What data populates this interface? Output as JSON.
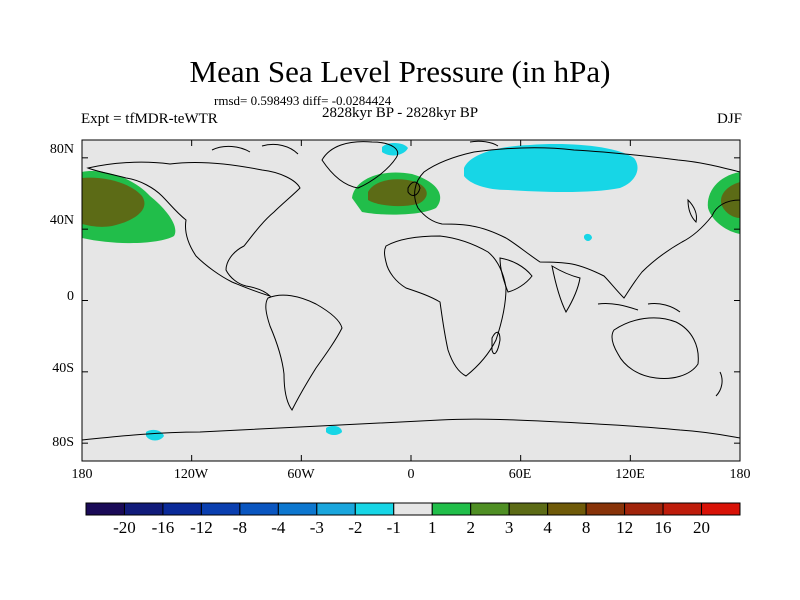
{
  "title": "Mean Sea Level Pressure (in hPa)",
  "stats_text": "rmsd= 0.598493 diff= -0.0284424",
  "experiment": "Expt = tfMDR-teWTR",
  "period": "2828kyr BP - 2828kyr BP",
  "season": "DJF",
  "map": {
    "projection": "cylindrical-equidistant",
    "lon_range": [
      -180,
      180
    ],
    "lat_range": [
      -90,
      90
    ],
    "y_ticks": [
      "80N",
      "40N",
      "0",
      "40S",
      "80S"
    ],
    "x_ticks": [
      "180",
      "120W",
      "60W",
      "0",
      "60E",
      "120E",
      "180"
    ],
    "background_color": "#e6e6e6",
    "coastline_color": "#000000"
  },
  "colorbar": {
    "colors": [
      "#1a0a57",
      "#111b7a",
      "#0a2a99",
      "#0a3fb0",
      "#0a56c0",
      "#0d77cf",
      "#1aa6dd",
      "#17d6e6",
      "#e6e6e6",
      "#21be4a",
      "#4f8f24",
      "#5c6b16",
      "#6f5a09",
      "#883309",
      "#a1240b",
      "#be1c0b",
      "#d81207"
    ],
    "labels": [
      "-20",
      "-16",
      "-12",
      "-8",
      "-4",
      "-3",
      "-2",
      "-1",
      "1",
      "2",
      "3",
      "4",
      "8",
      "12",
      "16",
      "20"
    ]
  },
  "anomalies": [
    {
      "name": "north-pacific-high",
      "category": "2",
      "color": "#21be4a"
    },
    {
      "name": "north-pacific-core",
      "category": "4",
      "color": "#5c6b16"
    },
    {
      "name": "north-atlantic-high",
      "category": "2",
      "color": "#21be4a"
    },
    {
      "name": "north-atlantic-core",
      "category": "4",
      "color": "#5c6b16"
    },
    {
      "name": "siberia-low",
      "category": "-1",
      "color": "#17d6e6"
    },
    {
      "name": "greenland-low",
      "category": "-1",
      "color": "#17d6e6"
    },
    {
      "name": "antarctic-low",
      "category": "-1",
      "color": "#17d6e6"
    }
  ]
}
